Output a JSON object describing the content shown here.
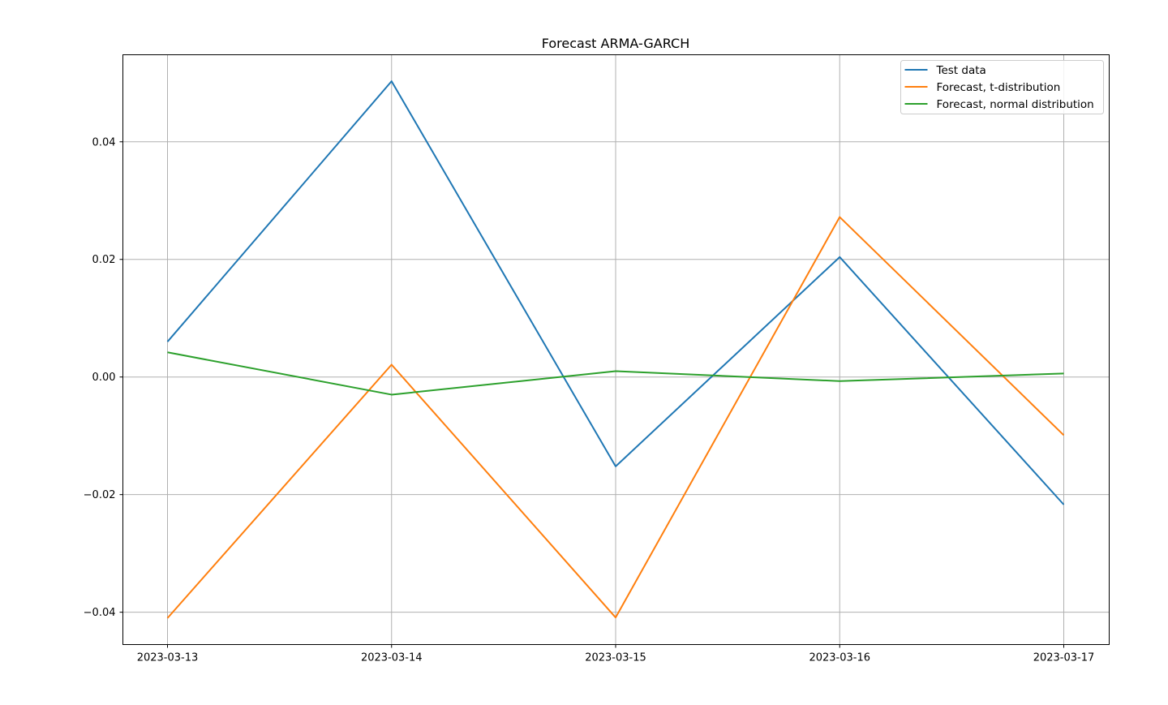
{
  "chart_data": {
    "type": "line",
    "title": "Forecast ARMA-GARCH",
    "xlabel": "",
    "ylabel": "",
    "x": [
      "2023-03-13",
      "2023-03-14",
      "2023-03-15",
      "2023-03-16",
      "2023-03-17"
    ],
    "x_tick_labels": [
      "2023-03-13",
      "2023-03-14",
      "2023-03-15",
      "2023-03-16",
      "2023-03-17"
    ],
    "ylim": [
      -0.0455,
      0.0548
    ],
    "y_ticks": [
      -0.04,
      -0.02,
      0.0,
      0.02,
      0.04
    ],
    "y_tick_labels": [
      "−0.04",
      "−0.02",
      "0.00",
      "0.02",
      "0.04"
    ],
    "grid": true,
    "legend_position": "top-right",
    "series": [
      {
        "name": "Test data",
        "color": "#1f77b4",
        "values": [
          0.006,
          0.0503,
          -0.0152,
          0.0204,
          -0.0217
        ]
      },
      {
        "name": "Forecast, t-distribution",
        "color": "#ff7f0e",
        "values": [
          -0.041,
          0.0021,
          -0.0409,
          0.0272,
          -0.0099
        ]
      },
      {
        "name": "Forecast, normal distribution",
        "color": "#2ca02c",
        "values": [
          0.0042,
          -0.003,
          0.001,
          -0.0007,
          0.0006
        ]
      }
    ]
  }
}
